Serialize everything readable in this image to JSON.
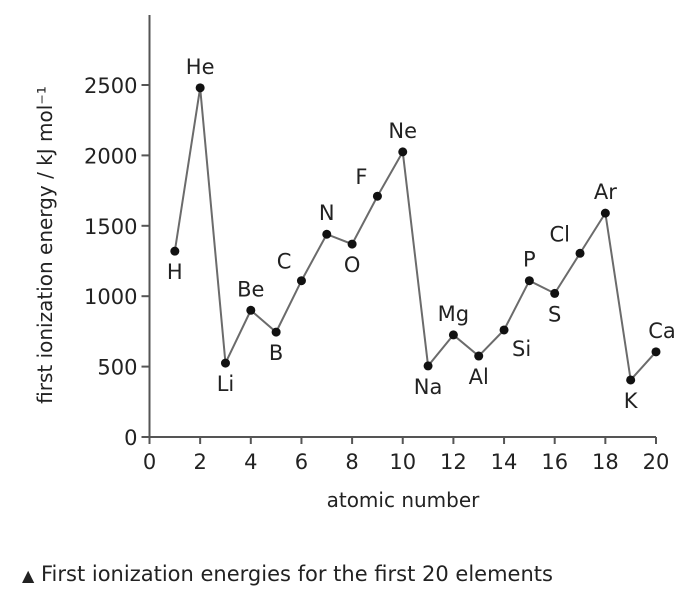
{
  "chart_data": {
    "type": "line",
    "title": "",
    "xlabel": "atomic number",
    "ylabel": "first ionization energy / kJ mol⁻¹",
    "xlim": [
      0,
      20
    ],
    "ylim": [
      0,
      2500
    ],
    "x_ticks": [
      "0",
      "2",
      "4",
      "6",
      "8",
      "10",
      "12",
      "14",
      "16",
      "18",
      "20"
    ],
    "y_ticks": [
      "0",
      "500",
      "1000",
      "1500",
      "2000",
      "2500"
    ],
    "grid": false,
    "line_color": "#6b6b6b",
    "marker_color": "#111111",
    "series": [
      {
        "points": [
          {
            "x": 1,
            "y": 1320,
            "label": "H",
            "label_pos": "below"
          },
          {
            "x": 2,
            "y": 2480,
            "label": "He",
            "label_pos": "above"
          },
          {
            "x": 3,
            "y": 525,
            "label": "Li",
            "label_pos": "below"
          },
          {
            "x": 4,
            "y": 900,
            "label": "Be",
            "label_pos": "above"
          },
          {
            "x": 5,
            "y": 745,
            "label": "B",
            "label_pos": "below"
          },
          {
            "x": 6,
            "y": 1110,
            "label": "C",
            "label_pos": "above-left"
          },
          {
            "x": 7,
            "y": 1440,
            "label": "N",
            "label_pos": "above"
          },
          {
            "x": 8,
            "y": 1370,
            "label": "O",
            "label_pos": "below"
          },
          {
            "x": 9,
            "y": 1710,
            "label": "F",
            "label_pos": "above-left"
          },
          {
            "x": 10,
            "y": 2025,
            "label": "Ne",
            "label_pos": "above"
          },
          {
            "x": 11,
            "y": 505,
            "label": "Na",
            "label_pos": "below"
          },
          {
            "x": 12,
            "y": 725,
            "label": "Mg",
            "label_pos": "above"
          },
          {
            "x": 13,
            "y": 575,
            "label": "Al",
            "label_pos": "below"
          },
          {
            "x": 14,
            "y": 760,
            "label": "Si",
            "label_pos": "below-right"
          },
          {
            "x": 15,
            "y": 1110,
            "label": "P",
            "label_pos": "above"
          },
          {
            "x": 16,
            "y": 1020,
            "label": "S",
            "label_pos": "below"
          },
          {
            "x": 17,
            "y": 1305,
            "label": "Cl",
            "label_pos": "above-left"
          },
          {
            "x": 18,
            "y": 1590,
            "label": "Ar",
            "label_pos": "above"
          },
          {
            "x": 19,
            "y": 405,
            "label": "K",
            "label_pos": "below"
          },
          {
            "x": 20,
            "y": 605,
            "label": "Ca",
            "label_pos": "above-right"
          }
        ]
      }
    ]
  },
  "caption": {
    "marker": "▲",
    "text": "First ionization energies for the first 20 elements"
  }
}
